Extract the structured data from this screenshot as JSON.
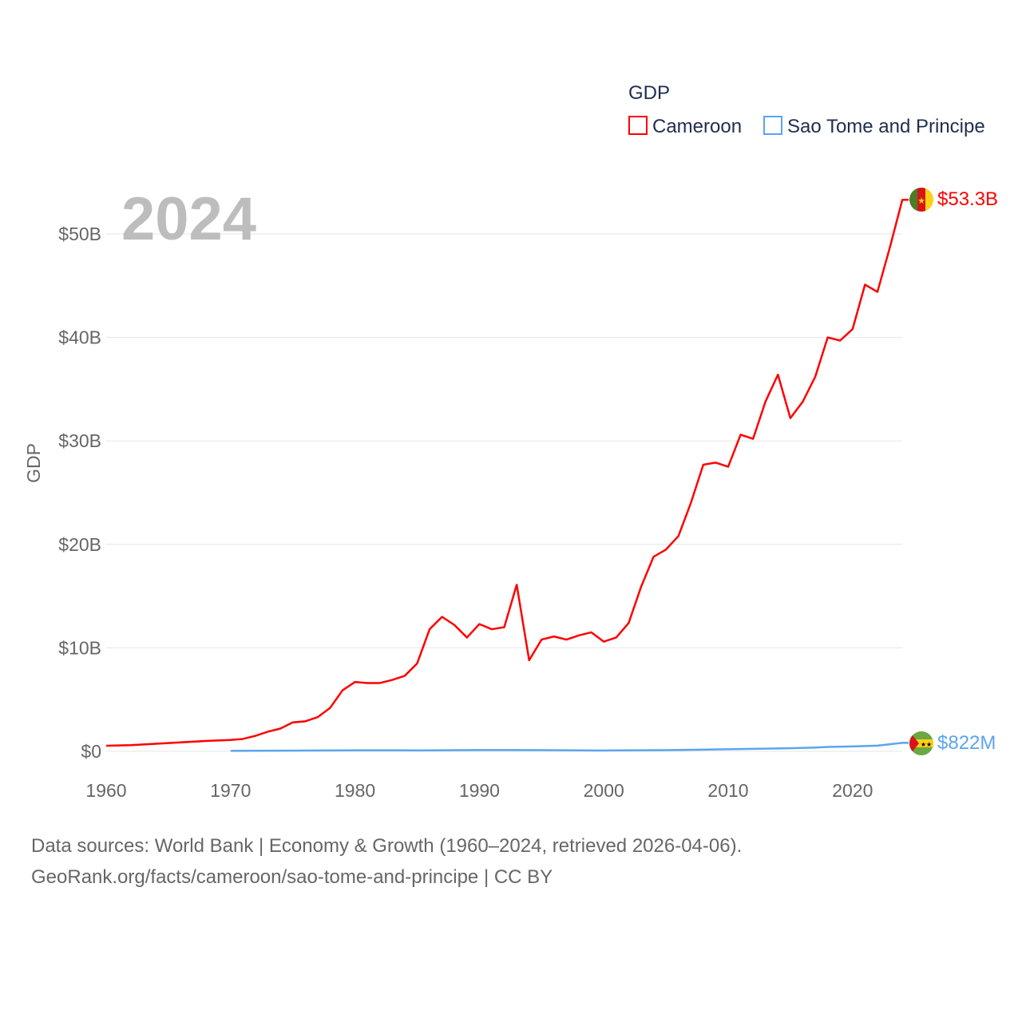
{
  "chart_data": {
    "type": "line",
    "title": "",
    "year_label": "2024",
    "ylabel": "GDP",
    "xlabel": "",
    "xlim": [
      1960,
      2024
    ],
    "ylim": [
      0,
      53.3
    ],
    "y_unit": "billions USD",
    "x_ticks": [
      "1960",
      "1970",
      "1980",
      "1990",
      "2000",
      "2010",
      "2020"
    ],
    "y_ticks": [
      {
        "v": 0,
        "label": "$0"
      },
      {
        "v": 10,
        "label": "$10B"
      },
      {
        "v": 20,
        "label": "$20B"
      },
      {
        "v": 30,
        "label": "$30B"
      },
      {
        "v": 40,
        "label": "$40B"
      },
      {
        "v": 50,
        "label": "$50B"
      }
    ],
    "legend": {
      "title": "GDP",
      "position": "top-right"
    },
    "grid": true,
    "series": [
      {
        "name": "Cameroon",
        "color": "#ff0000",
        "end_label": "$53.3B",
        "flag": "cameroon-flag",
        "x": [
          1960,
          1962,
          1965,
          1968,
          1970,
          1971,
          1972,
          1973,
          1974,
          1975,
          1976,
          1977,
          1978,
          1979,
          1980,
          1981,
          1982,
          1983,
          1984,
          1985,
          1986,
          1987,
          1988,
          1989,
          1990,
          1991,
          1992,
          1993,
          1994,
          1995,
          1996,
          1997,
          1998,
          1999,
          2000,
          2001,
          2002,
          2003,
          2004,
          2005,
          2006,
          2007,
          2008,
          2009,
          2010,
          2011,
          2012,
          2013,
          2014,
          2015,
          2016,
          2017,
          2018,
          2019,
          2020,
          2021,
          2022,
          2023,
          2024
        ],
        "y": [
          0.54,
          0.6,
          0.8,
          1.0,
          1.1,
          1.2,
          1.5,
          1.9,
          2.2,
          2.8,
          2.9,
          3.3,
          4.2,
          5.9,
          6.7,
          6.6,
          6.6,
          6.9,
          7.3,
          8.5,
          11.8,
          13.0,
          12.2,
          11.0,
          12.3,
          11.8,
          12.0,
          16.1,
          8.8,
          10.8,
          11.1,
          10.8,
          11.2,
          11.5,
          10.6,
          11.0,
          12.4,
          15.9,
          18.8,
          19.5,
          20.8,
          24.0,
          27.7,
          27.9,
          27.5,
          30.6,
          30.2,
          33.8,
          36.4,
          32.2,
          33.8,
          36.2,
          40.0,
          39.7,
          40.8,
          45.1,
          44.4,
          48.7,
          53.3
        ]
      },
      {
        "name": "Sao Tome and Principe",
        "color": "#5aa5ee",
        "end_label": "$822M",
        "flag": "sao-tome-flag",
        "x": [
          1970,
          1975,
          1980,
          1985,
          1990,
          1995,
          2000,
          2005,
          2010,
          2015,
          2017,
          2018,
          2020,
          2022,
          2024
        ],
        "y": [
          0.05,
          0.07,
          0.1,
          0.09,
          0.13,
          0.12,
          0.08,
          0.12,
          0.2,
          0.3,
          0.37,
          0.42,
          0.47,
          0.55,
          0.822
        ]
      }
    ]
  },
  "footer": {
    "line1": "Data sources: World Bank | Economy & Growth (1960–2024, retrieved 2026-04-06).",
    "line2": "GeoRank.org/facts/cameroon/sao-tome-and-principe | CC BY"
  }
}
